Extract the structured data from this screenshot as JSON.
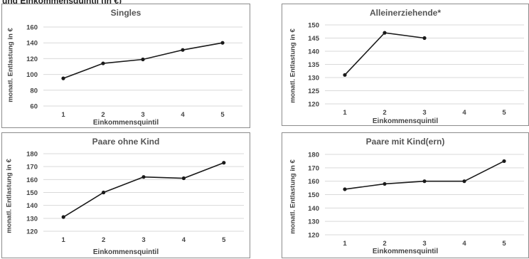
{
  "header": {
    "text": "und Einkommensquintil (in €)"
  },
  "chart_data": [
    {
      "type": "line",
      "title": "Singles",
      "xlabel": "Einkommensquintil",
      "ylabel": "monatl. Entlastung in €",
      "categories": [
        "1",
        "2",
        "3",
        "4",
        "5"
      ],
      "values": [
        95,
        114,
        119,
        131,
        140
      ],
      "ylim": [
        60,
        160
      ],
      "yticks": [
        "60",
        "80",
        "100",
        "120",
        "140",
        "160"
      ],
      "grid": true,
      "color": "#1a1a1a"
    },
    {
      "type": "line",
      "title": "Alleinerziehende*",
      "xlabel": "Einkommensquintil",
      "ylabel": "monatl. Entlastung in €",
      "categories": [
        "1",
        "2",
        "3",
        "4",
        "5"
      ],
      "values": [
        131,
        147,
        145,
        null,
        null
      ],
      "ylim": [
        120,
        150
      ],
      "yticks": [
        "120",
        "125",
        "130",
        "135",
        "140",
        "145",
        "150"
      ],
      "grid": true,
      "color": "#1a1a1a"
    },
    {
      "type": "line",
      "title": "Paare ohne Kind",
      "xlabel": "Einkommensquintil",
      "ylabel": "monatl. Entlastung in €",
      "categories": [
        "1",
        "2",
        "3",
        "4",
        "5"
      ],
      "values": [
        131,
        150,
        162,
        161,
        173
      ],
      "ylim": [
        120,
        180
      ],
      "yticks": [
        "120",
        "130",
        "140",
        "150",
        "160",
        "170",
        "180"
      ],
      "grid": true,
      "color": "#1a1a1a"
    },
    {
      "type": "line",
      "title": "Paare mit Kind(ern)",
      "xlabel": "Einkommensquintil",
      "ylabel": "monatl. Entlastung in €",
      "categories": [
        "1",
        "2",
        "3",
        "4",
        "5"
      ],
      "values": [
        154,
        158,
        160,
        160,
        175
      ],
      "ylim": [
        120,
        180
      ],
      "yticks": [
        "120",
        "130",
        "140",
        "150",
        "160",
        "170",
        "180"
      ],
      "grid": true,
      "color": "#1a1a1a"
    }
  ]
}
